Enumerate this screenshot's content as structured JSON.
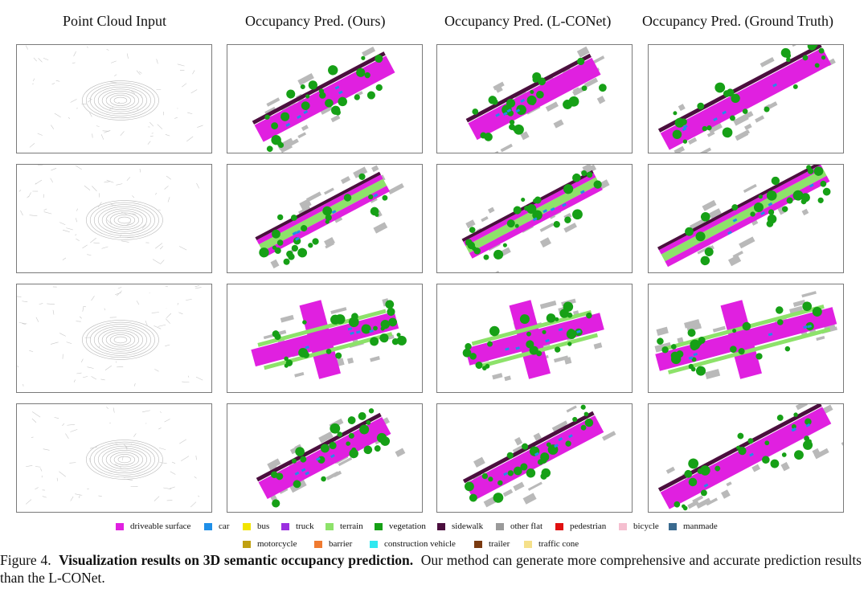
{
  "columns": [
    "Point Cloud Input",
    "Occupancy Pred. (Ours)",
    "Occupancy Pred. (L-CONet)",
    "Occupancy Pred. (Ground Truth)"
  ],
  "legend": [
    {
      "label": "driveable surface",
      "color": "#e020e0"
    },
    {
      "label": "car",
      "color": "#1f8fe8"
    },
    {
      "label": "bus",
      "color": "#f2e400"
    },
    {
      "label": "truck",
      "color": "#9b30e0"
    },
    {
      "label": "terrain",
      "color": "#8de26a"
    },
    {
      "label": "vegetation",
      "color": "#16a016"
    },
    {
      "label": "sidewalk",
      "color": "#4b0f3e"
    },
    {
      "label": "other flat",
      "color": "#9a9a9a"
    },
    {
      "label": "pedestrian",
      "color": "#e01010"
    },
    {
      "label": "bicycle",
      "color": "#f5bfd0"
    },
    {
      "label": "manmade",
      "color": "#3a6a8f"
    },
    {
      "label": "motorcycle",
      "color": "#c0a010"
    },
    {
      "label": "barrier",
      "color": "#f07a30"
    },
    {
      "label": "construction vehicle",
      "color": "#30e8f0"
    },
    {
      "label": "trailer",
      "color": "#7a3a10"
    },
    {
      "label": "traffic cone",
      "color": "#f5e08a"
    }
  ],
  "caption": {
    "prefix": "Figure 4.",
    "bold": "Visualization results on 3D semantic occupancy prediction.",
    "rest": "Our method can generate more comprehensive and accurate prediction results than the L-CONet."
  }
}
